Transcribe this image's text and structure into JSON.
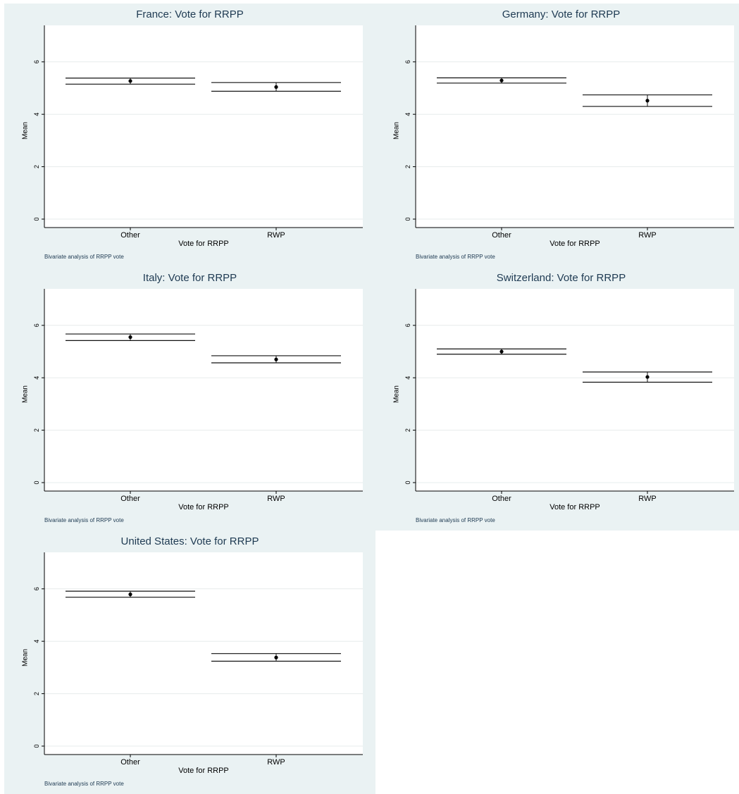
{
  "common": {
    "xlabel": "Vote for RRPP",
    "ylabel": "Mean",
    "note": "Bivariate analysis of RRPP vote",
    "categories": [
      "Other",
      "RWP"
    ],
    "yticks": [
      "0",
      "2",
      "4",
      "6"
    ]
  },
  "chart_data": [
    {
      "type": "scatter",
      "title": "France: Vote for RRPP",
      "categories": [
        "Other",
        "RWP"
      ],
      "means": [
        5.27,
        5.04
      ],
      "ci_low": [
        5.15,
        4.88
      ],
      "ci_high": [
        5.38,
        5.21
      ],
      "xlabel": "Vote for RRPP",
      "ylabel": "Mean",
      "ylim": [
        0,
        7.3
      ],
      "grid": true
    },
    {
      "type": "scatter",
      "title": "Germany: Vote for RRPP",
      "categories": [
        "Other",
        "RWP"
      ],
      "means": [
        5.29,
        4.52
      ],
      "ci_low": [
        5.19,
        4.3
      ],
      "ci_high": [
        5.39,
        4.74
      ],
      "xlabel": "Vote for RRPP",
      "ylabel": "Mean",
      "ylim": [
        0,
        7.3
      ],
      "grid": true
    },
    {
      "type": "scatter",
      "title": "Italy: Vote for RRPP",
      "categories": [
        "Other",
        "RWP"
      ],
      "means": [
        5.55,
        4.7
      ],
      "ci_low": [
        5.42,
        4.57
      ],
      "ci_high": [
        5.67,
        4.84
      ],
      "xlabel": "Vote for RRPP",
      "ylabel": "Mean",
      "ylim": [
        0,
        7.3
      ],
      "grid": true
    },
    {
      "type": "scatter",
      "title": "Switzerland: Vote for RRPP",
      "categories": [
        "Other",
        "RWP"
      ],
      "means": [
        5.0,
        4.03
      ],
      "ci_low": [
        4.9,
        3.83
      ],
      "ci_high": [
        5.1,
        4.22
      ],
      "xlabel": "Vote for RRPP",
      "ylabel": "Mean",
      "ylim": [
        0,
        7.3
      ],
      "grid": true
    },
    {
      "type": "scatter",
      "title": "United States: Vote for RRPP",
      "categories": [
        "Other",
        "RWP"
      ],
      "means": [
        5.79,
        3.38
      ],
      "ci_low": [
        5.68,
        3.24
      ],
      "ci_high": [
        5.91,
        3.53
      ],
      "xlabel": "Vote for RRPP",
      "ylabel": "Mean",
      "ylim": [
        0,
        7.3
      ],
      "grid": true
    }
  ]
}
